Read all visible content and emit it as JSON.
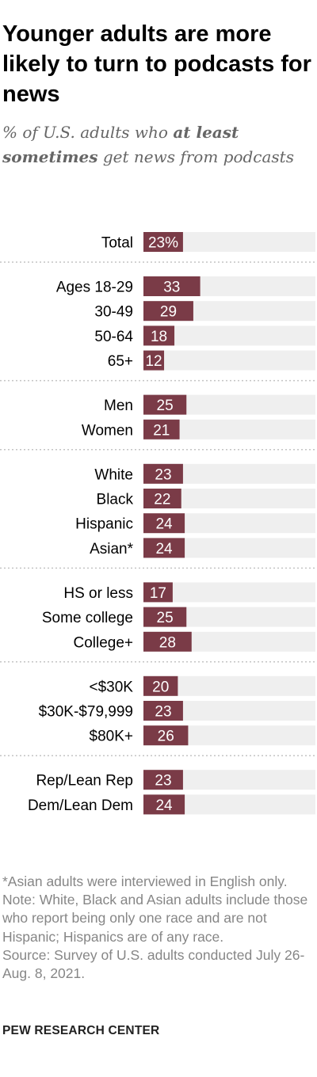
{
  "header": {
    "title": "Younger adults are more likely to turn to podcasts for news",
    "subtitle_part1": "% of U.S. adults who ",
    "subtitle_emph": "at least sometimes",
    "subtitle_part2": " get news from podcasts"
  },
  "chart_data": {
    "type": "bar",
    "orientation": "horizontal",
    "max": 100,
    "bar_color": "#7a3b47",
    "track_color": "#efefef",
    "groups": [
      {
        "rows": [
          {
            "label": "Total",
            "value": 23,
            "display": "23%"
          }
        ]
      },
      {
        "rows": [
          {
            "label": "Ages 18-29",
            "value": 33,
            "display": "33"
          },
          {
            "label": "30-49",
            "value": 29,
            "display": "29"
          },
          {
            "label": "50-64",
            "value": 18,
            "display": "18"
          },
          {
            "label": "65+",
            "value": 12,
            "display": "12"
          }
        ]
      },
      {
        "rows": [
          {
            "label": "Men",
            "value": 25,
            "display": "25"
          },
          {
            "label": "Women",
            "value": 21,
            "display": "21"
          }
        ]
      },
      {
        "rows": [
          {
            "label": "White",
            "value": 23,
            "display": "23"
          },
          {
            "label": "Black",
            "value": 22,
            "display": "22"
          },
          {
            "label": "Hispanic",
            "value": 24,
            "display": "24"
          },
          {
            "label": "Asian*",
            "value": 24,
            "display": "24"
          }
        ]
      },
      {
        "rows": [
          {
            "label": "HS or less",
            "value": 17,
            "display": "17"
          },
          {
            "label": "Some college",
            "value": 25,
            "display": "25"
          },
          {
            "label": "College+",
            "value": 28,
            "display": "28"
          }
        ]
      },
      {
        "rows": [
          {
            "label": "<$30K",
            "value": 20,
            "display": "20"
          },
          {
            "label": "$30K-$79,999",
            "value": 23,
            "display": "23"
          },
          {
            "label": "$80K+",
            "value": 26,
            "display": "26"
          }
        ]
      },
      {
        "rows": [
          {
            "label": "Rep/Lean Rep",
            "value": 23,
            "display": "23"
          },
          {
            "label": "Dem/Lean Dem",
            "value": 24,
            "display": "24"
          }
        ]
      }
    ]
  },
  "notes": {
    "asterisk": "*Asian adults were interviewed in English only.",
    "note": "Note: White, Black and Asian adults include those who report being only one race and are not Hispanic; Hispanics are of any race.",
    "source": "Source: Survey of U.S. adults conducted July 26-Aug. 8, 2021."
  },
  "brand": "PEW RESEARCH CENTER"
}
